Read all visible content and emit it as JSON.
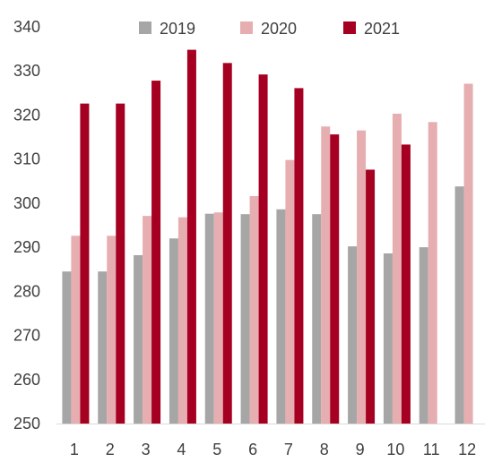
{
  "chart_data": {
    "type": "bar",
    "categories": [
      "1",
      "2",
      "3",
      "4",
      "5",
      "6",
      "7",
      "8",
      "9",
      "10",
      "11",
      "12"
    ],
    "series": [
      {
        "name": "2019",
        "color": "#a6a6a6",
        "values": [
          284.5,
          284.5,
          288.2,
          292,
          297.6,
          297.5,
          298.6,
          297.5,
          290.2,
          288.6,
          290,
          303.8
        ]
      },
      {
        "name": "2020",
        "color": "#e6aeb0",
        "values": [
          292.6,
          292.6,
          297.1,
          296.8,
          297.9,
          301.6,
          309.8,
          317.4,
          316.5,
          320.3,
          318.4,
          327.1
        ]
      },
      {
        "name": "2021",
        "color": "#a50021",
        "values": [
          322.6,
          322.6,
          327.8,
          334.8,
          331.8,
          329.2,
          326.1,
          315.6,
          307.6,
          313.3,
          null,
          null
        ]
      }
    ],
    "y_ticks": [
      "250",
      "260",
      "270",
      "280",
      "290",
      "300",
      "310",
      "320",
      "330",
      "340"
    ],
    "ylim": [
      250,
      340
    ],
    "legend_position": "top-center",
    "grid": false
  }
}
